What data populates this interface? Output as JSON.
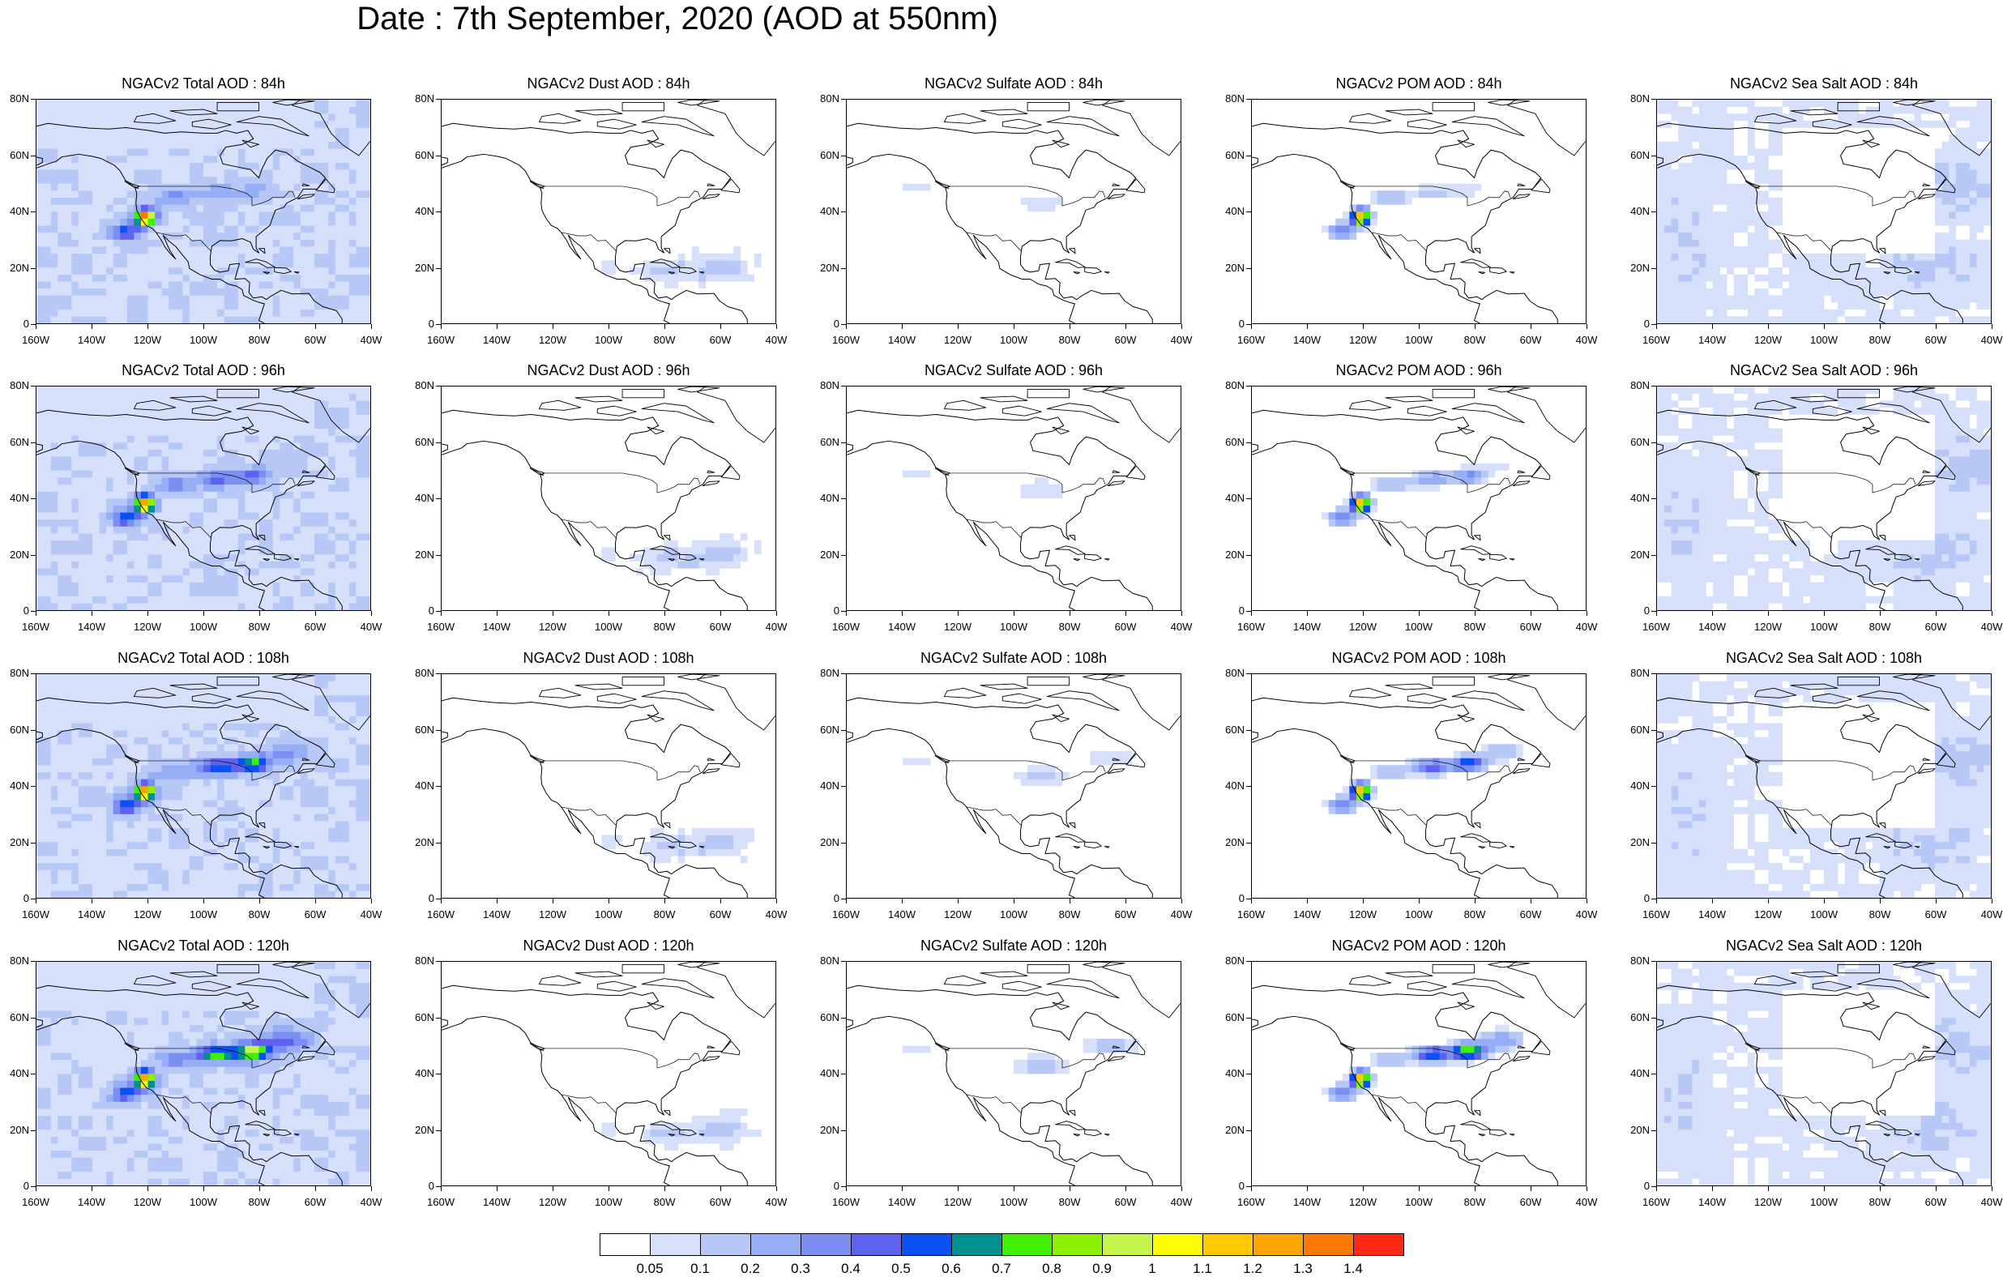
{
  "title": "Date : 7th September, 2020 (AOD at 550nm)",
  "panels": [
    {
      "title": "NGACv2 Total AOD : 84h",
      "species": "total"
    },
    {
      "title": "NGACv2 Dust AOD : 84h",
      "species": "dust"
    },
    {
      "title": "NGACv2 Sulfate AOD : 84h",
      "species": "sulfate"
    },
    {
      "title": "NGACv2 POM AOD : 84h",
      "species": "pom"
    },
    {
      "title": "NGACv2 Sea Salt AOD : 84h",
      "species": "seasalt"
    },
    {
      "title": "NGACv2 Total AOD : 96h",
      "species": "total"
    },
    {
      "title": "NGACv2 Dust AOD : 96h",
      "species": "dust"
    },
    {
      "title": "NGACv2 Sulfate AOD : 96h",
      "species": "sulfate"
    },
    {
      "title": "NGACv2 POM AOD : 96h",
      "species": "pom"
    },
    {
      "title": "NGACv2 Sea Salt AOD : 96h",
      "species": "seasalt"
    },
    {
      "title": "NGACv2 Total AOD : 108h",
      "species": "total"
    },
    {
      "title": "NGACv2 Dust AOD : 108h",
      "species": "dust"
    },
    {
      "title": "NGACv2 Sulfate AOD : 108h",
      "species": "sulfate"
    },
    {
      "title": "NGACv2 POM AOD : 108h",
      "species": "pom"
    },
    {
      "title": "NGACv2 Sea Salt AOD : 108h",
      "species": "seasalt"
    },
    {
      "title": "NGACv2 Total AOD : 120h",
      "species": "total"
    },
    {
      "title": "NGACv2 Dust AOD : 120h",
      "species": "dust"
    },
    {
      "title": "NGACv2 Sulfate AOD : 120h",
      "species": "sulfate"
    },
    {
      "title": "NGACv2 POM AOD : 120h",
      "species": "pom"
    },
    {
      "title": "NGACv2 Sea Salt  AOD : 120h",
      "species": "seasalt"
    }
  ],
  "axes": {
    "lat_ticks": [
      "80N",
      "60N",
      "40N",
      "20N",
      "0"
    ],
    "lon_ticks": [
      "160W",
      "140W",
      "120W",
      "100W",
      "80W",
      "60W",
      "40W"
    ],
    "lon_range": [
      -160,
      -40
    ],
    "lat_range": [
      0,
      80
    ]
  },
  "colorbar": {
    "colors": [
      "#ffffff",
      "#d6e0fb",
      "#b8c8f6",
      "#96aef5",
      "#7b8ef2",
      "#5e62ee",
      "#0a50f2",
      "#009090",
      "#41f000",
      "#8cf000",
      "#c5f54a",
      "#ffff00",
      "#ffc800",
      "#ffa500",
      "#ff7800",
      "#ff2814"
    ],
    "labels": [
      "0.05",
      "0.1",
      "0.2",
      "0.3",
      "0.4",
      "0.5",
      "0.6",
      "0.7",
      "0.8",
      "0.9",
      "1",
      "1.1",
      "1.2",
      "1.3",
      "1.4"
    ]
  },
  "chart_data": {
    "type": "heatmap",
    "variable": "AOD at 550nm",
    "lon_range": [
      -160,
      -40
    ],
    "lat_range": [
      0,
      80
    ],
    "forecast_hours": [
      "84h",
      "96h",
      "108h",
      "120h"
    ],
    "species": [
      "Total",
      "Dust",
      "Sulfate",
      "POM",
      "Sea Salt"
    ],
    "levels": [
      0.05,
      0.1,
      0.2,
      0.3,
      0.4,
      0.5,
      0.6,
      0.7,
      0.8,
      0.9,
      1,
      1.1,
      1.2,
      1.3,
      1.4
    ],
    "plume_source": {
      "lon": -121,
      "lat": 38
    }
  }
}
